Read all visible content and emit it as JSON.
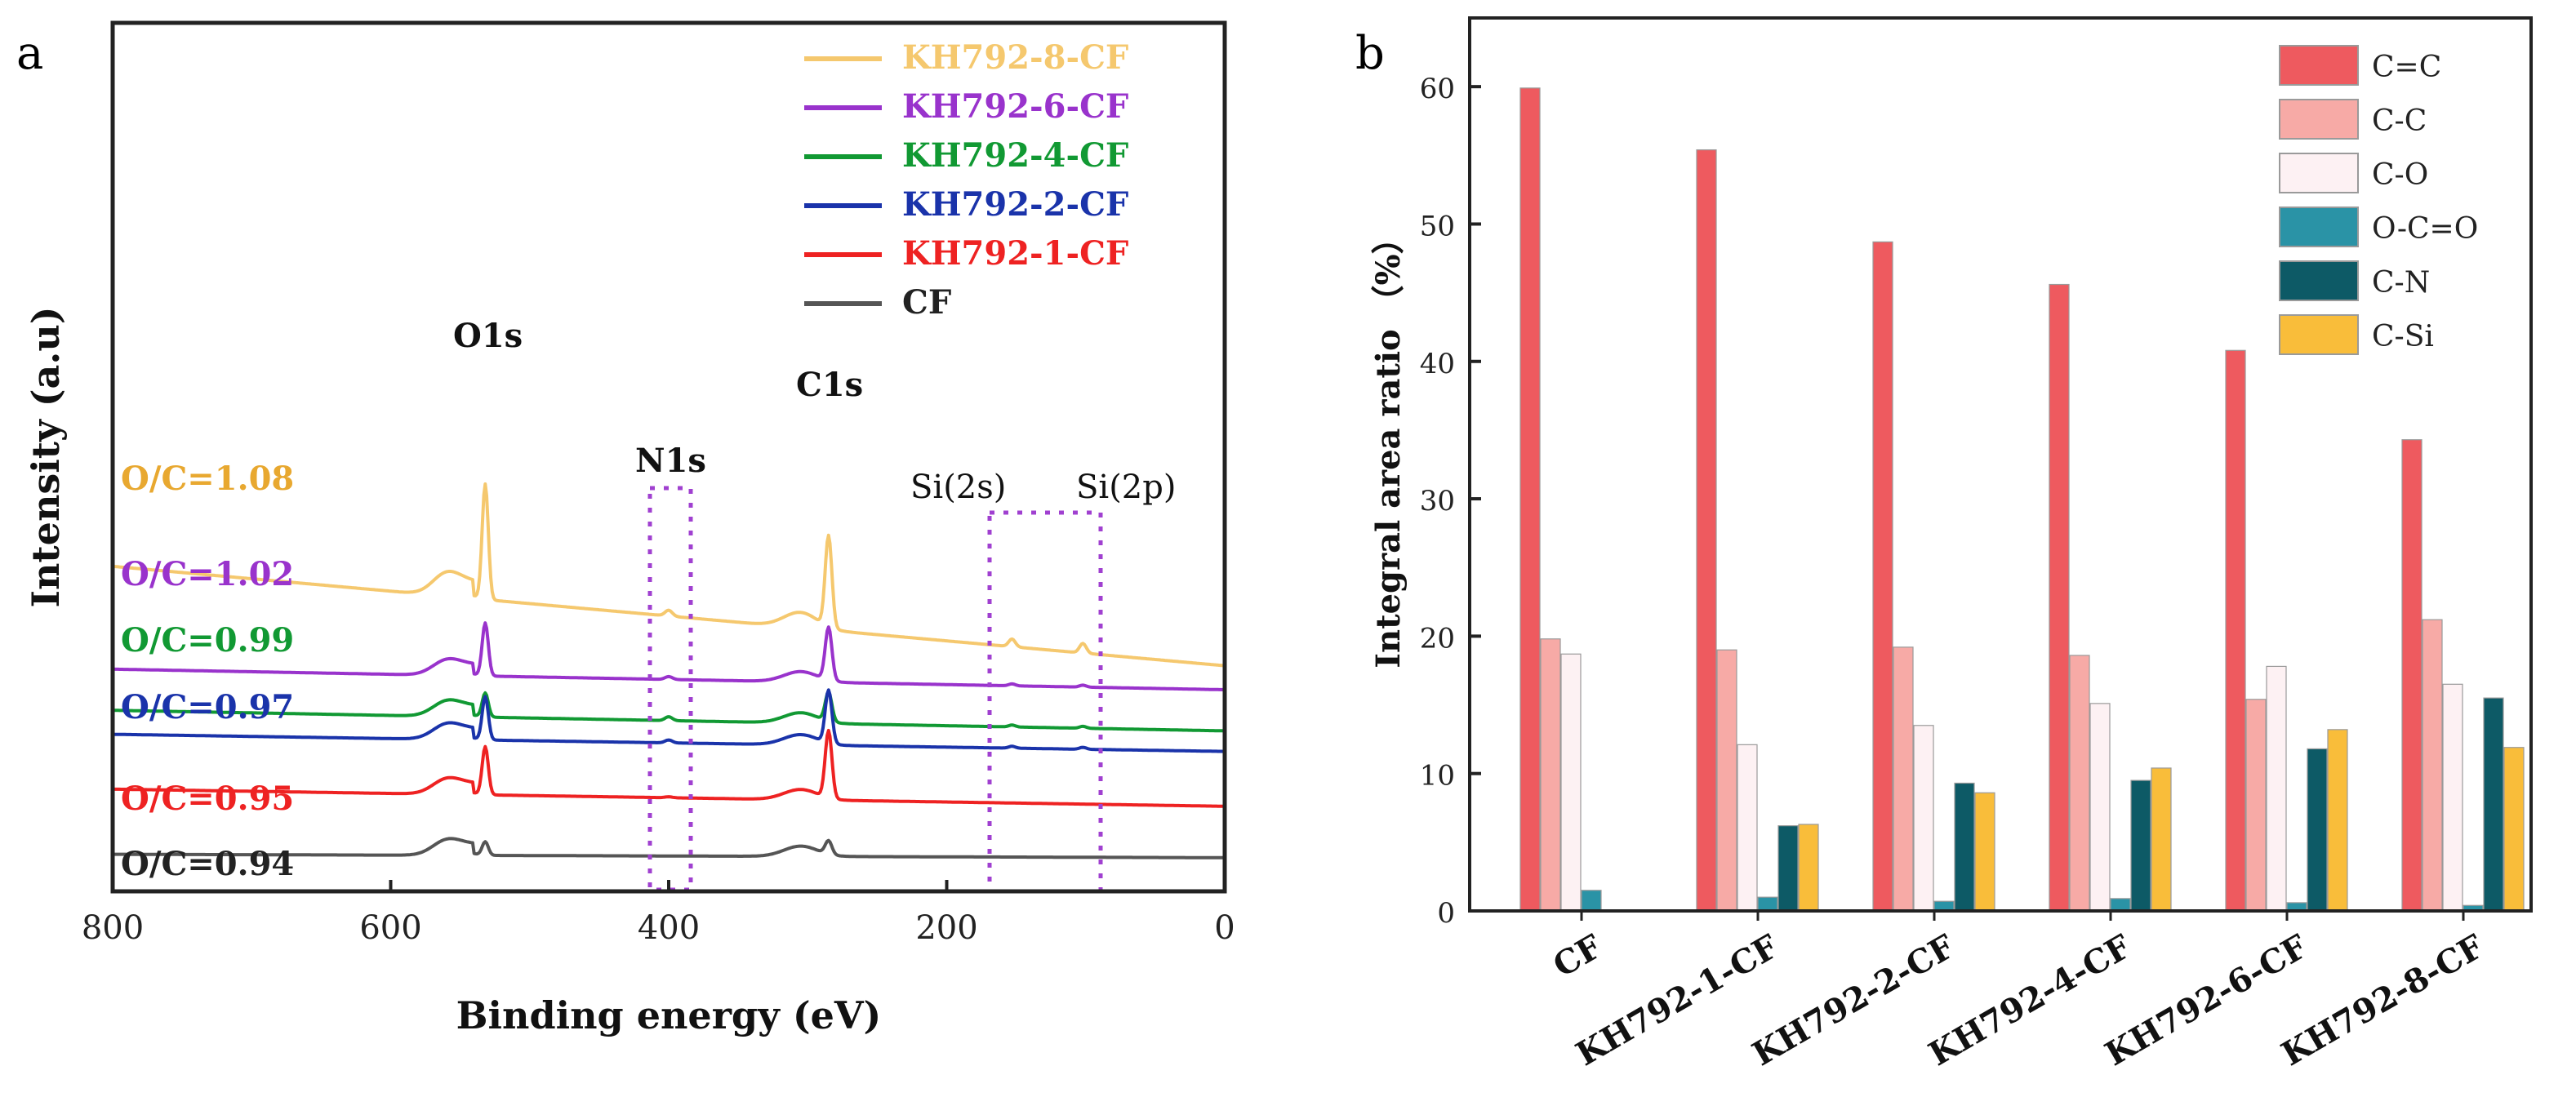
{
  "chart_data": [
    {
      "type": "line",
      "panel_label": "a",
      "title": "",
      "xlabel": "Binding energy (eV)",
      "ylabel": "Intensity (a.u)",
      "xlim": [
        800,
        0
      ],
      "x_reversed": true,
      "xticks": [
        800,
        600,
        400,
        200,
        0
      ],
      "x_tick_labels": [
        "800",
        "600",
        "400",
        "200",
        "0"
      ],
      "yticks": [],
      "grid": false,
      "legend_position": "top-right",
      "legend": [
        {
          "name": "KH792-8-CF",
          "color": "#f5c86e"
        },
        {
          "name": "KH792-6-CF",
          "color": "#9933cc"
        },
        {
          "name": "KH792-4-CF",
          "color": "#119933"
        },
        {
          "name": "KH792-2-CF",
          "color": "#1a33aa"
        },
        {
          "name": "KH792-1-CF",
          "color": "#ee2222"
        },
        {
          "name": "CF",
          "color": "#555555"
        }
      ],
      "peaks": [
        {
          "label": "O1s",
          "energy": 532
        },
        {
          "label": "N1s",
          "energy": 400
        },
        {
          "label": "C1s",
          "energy": 285
        },
        {
          "label": "Si(2s)",
          "energy": 153
        },
        {
          "label": "Si(2p)",
          "energy": 102
        }
      ],
      "annotations": [
        {
          "text": "O/C=1.08",
          "color": "#e8a830"
        },
        {
          "text": "O/C=1.02",
          "color": "#9933cc"
        },
        {
          "text": "O/C=0.99",
          "color": "#119933"
        },
        {
          "text": "O/C=0.97",
          "color": "#1a33aa"
        },
        {
          "text": "O/C=0.95",
          "color": "#ee2222"
        },
        {
          "text": "O/C=0.94",
          "color": "#222222"
        }
      ],
      "series": [
        {
          "name": "KH792-8-CF",
          "color": "#f5c86e",
          "baseline_left": 0.61,
          "baseline_right": 0.32,
          "scale": 1.5,
          "o1s": 120,
          "c1s": 95,
          "n1s": 6,
          "si2s": 8,
          "si2p": 10
        },
        {
          "name": "KH792-6-CF",
          "color": "#9933cc",
          "baseline_left": 0.31,
          "baseline_right": 0.25,
          "scale": 1.0,
          "o1s": 55,
          "c1s": 55,
          "n1s": 3,
          "si2s": 2,
          "si2p": 2
        },
        {
          "name": "KH792-4-CF",
          "color": "#119933",
          "baseline_left": 0.19,
          "baseline_right": 0.13,
          "scale": 1.0,
          "o1s": 25,
          "c1s": 30,
          "n1s": 4,
          "si2s": 2,
          "si2p": 2
        },
        {
          "name": "KH792-2-CF",
          "color": "#1a33aa",
          "baseline_left": 0.12,
          "baseline_right": 0.07,
          "scale": 1.0,
          "o1s": 45,
          "c1s": 55,
          "n1s": 3,
          "si2s": 2,
          "si2p": 2
        },
        {
          "name": "KH792-1-CF",
          "color": "#ee2222",
          "baseline_left": -0.04,
          "baseline_right": -0.09,
          "scale": 1.0,
          "o1s": 50,
          "c1s": 70,
          "n1s": 1,
          "si2s": 0,
          "si2p": 0
        },
        {
          "name": "CF",
          "color": "#555555",
          "baseline_left": -0.23,
          "baseline_right": -0.24,
          "scale": 1.0,
          "o1s": 14,
          "c1s": 14,
          "n1s": 0,
          "si2s": 0,
          "si2p": 0
        }
      ]
    },
    {
      "type": "bar",
      "panel_label": "b",
      "title": "",
      "xlabel": "",
      "ylabel": "Integral area ratio （%）",
      "ylim": [
        0,
        65
      ],
      "yticks": [
        0,
        10,
        20,
        30,
        40,
        50,
        60
      ],
      "y_tick_labels": [
        "0",
        "10",
        "20",
        "30",
        "40",
        "50",
        "60"
      ],
      "grid": false,
      "legend_position": "top-right",
      "categories": [
        "CF",
        "KH792-1-CF",
        "KH792-2-CF",
        "KH792-4-CF",
        "KH792-6-CF",
        "KH792-8-CF"
      ],
      "series": [
        {
          "name": "C=C",
          "color": "#ee5a5f",
          "values": [
            59.9,
            55.4,
            48.7,
            45.6,
            40.8,
            34.3
          ]
        },
        {
          "name": "C-C",
          "color": "#f7aaa6",
          "values": [
            19.8,
            19.0,
            19.2,
            18.6,
            15.4,
            21.2
          ]
        },
        {
          "name": "C-O",
          "color": "#fdf1f3",
          "values": [
            18.7,
            12.1,
            13.5,
            15.1,
            17.8,
            16.5
          ]
        },
        {
          "name": "O-C=O",
          "color": "#2a93a6",
          "values": [
            1.5,
            1.0,
            0.7,
            0.9,
            0.6,
            0.4
          ]
        },
        {
          "name": "C-N",
          "color": "#0d5a66",
          "values": [
            0,
            6.2,
            9.3,
            9.5,
            11.8,
            15.5
          ]
        },
        {
          "name": "C-Si",
          "color": "#f9bd3a",
          "values": [
            0,
            6.3,
            8.6,
            10.4,
            13.2,
            11.9
          ]
        }
      ]
    }
  ]
}
